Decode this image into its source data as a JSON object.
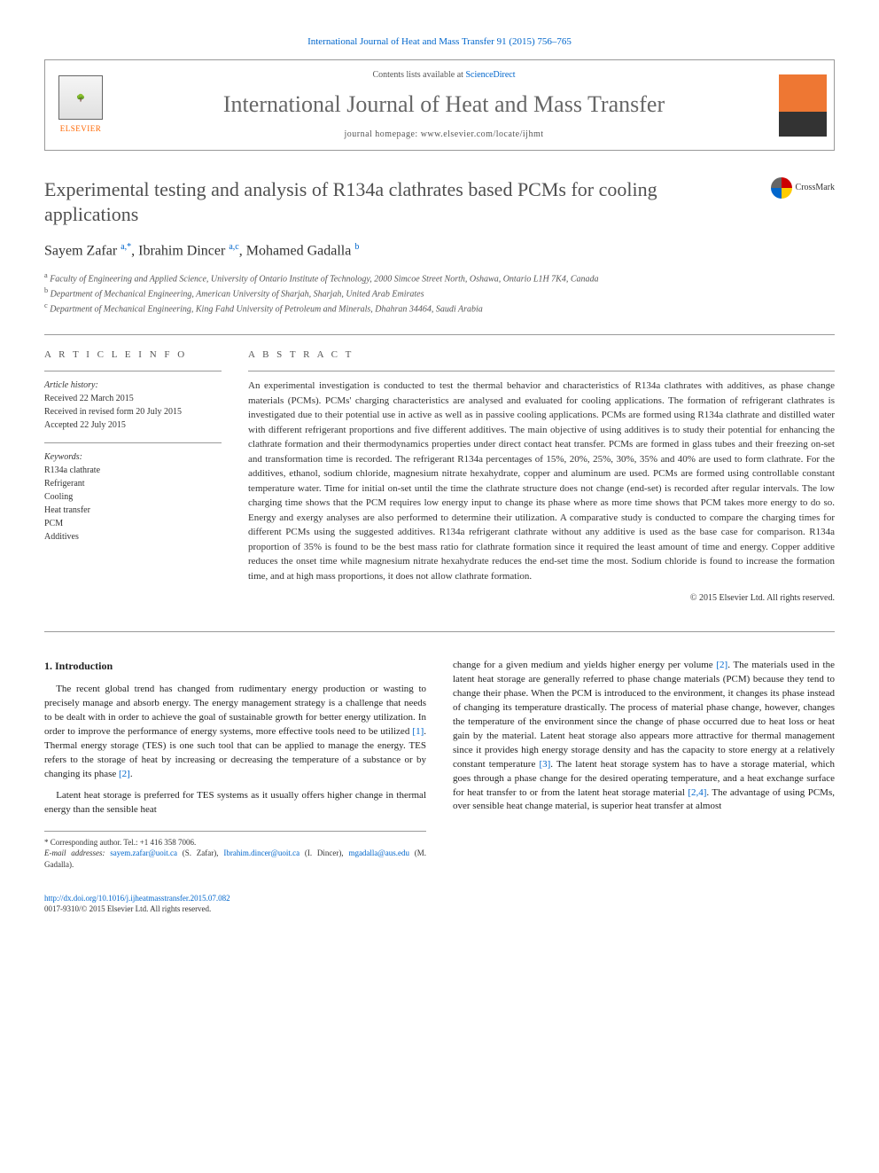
{
  "citation": "International Journal of Heat and Mass Transfer 91 (2015) 756–765",
  "header": {
    "contents_prefix": "Contents lists available at ",
    "contents_link": "ScienceDirect",
    "journal_name": "International Journal of Heat and Mass Transfer",
    "homepage_prefix": "journal homepage: ",
    "homepage_url": "www.elsevier.com/locate/ijhmt",
    "publisher": "ELSEVIER"
  },
  "title": "Experimental testing and analysis of R134a clathrates based PCMs for cooling applications",
  "crossmark": "CrossMark",
  "authors_html": "Sayem Zafar <sup>a,*</sup>, Ibrahim Dincer <sup>a,c</sup>, Mohamed Gadalla <sup>b</sup>",
  "affiliations": [
    "a Faculty of Engineering and Applied Science, University of Ontario Institute of Technology, 2000 Simcoe Street North, Oshawa, Ontario L1H 7K4, Canada",
    "b Department of Mechanical Engineering, American University of Sharjah, Sharjah, United Arab Emirates",
    "c Department of Mechanical Engineering, King Fahd University of Petroleum and Minerals, Dhahran 34464, Saudi Arabia"
  ],
  "article_info": {
    "heading": "A R T I C L E   I N F O",
    "history_label": "Article history:",
    "history": [
      "Received 22 March 2015",
      "Received in revised form 20 July 2015",
      "Accepted 22 July 2015"
    ],
    "keywords_label": "Keywords:",
    "keywords": [
      "R134a clathrate",
      "Refrigerant",
      "Cooling",
      "Heat transfer",
      "PCM",
      "Additives"
    ]
  },
  "abstract": {
    "heading": "A B S T R A C T",
    "text": "An experimental investigation is conducted to test the thermal behavior and characteristics of R134a clathrates with additives, as phase change materials (PCMs). PCMs' charging characteristics are analysed and evaluated for cooling applications. The formation of refrigerant clathrates is investigated due to their potential use in active as well as in passive cooling applications. PCMs are formed using R134a clathrate and distilled water with different refrigerant proportions and five different additives. The main objective of using additives is to study their potential for enhancing the clathrate formation and their thermodynamics properties under direct contact heat transfer. PCMs are formed in glass tubes and their freezing on-set and transformation time is recorded. The refrigerant R134a percentages of 15%, 20%, 25%, 30%, 35% and 40% are used to form clathrate. For the additives, ethanol, sodium chloride, magnesium nitrate hexahydrate, copper and aluminum are used. PCMs are formed using controllable constant temperature water. Time for initial on-set until the time the clathrate structure does not change (end-set) is recorded after regular intervals. The low charging time shows that the PCM requires low energy input to change its phase where as more time shows that PCM takes more energy to do so. Energy and exergy analyses are also performed to determine their utilization. A comparative study is conducted to compare the charging times for different PCMs using the suggested additives. R134a refrigerant clathrate without any additive is used as the base case for comparison. R134a proportion of 35% is found to be the best mass ratio for clathrate formation since it required the least amount of time and energy. Copper additive reduces the onset time while magnesium nitrate hexahydrate reduces the end-set time the most. Sodium chloride is found to increase the formation time, and at high mass proportions, it does not allow clathrate formation.",
    "copyright": "© 2015 Elsevier Ltd. All rights reserved."
  },
  "body": {
    "section_heading": "1. Introduction",
    "col1_p1": "The recent global trend has changed from rudimentary energy production or wasting to precisely manage and absorb energy. The energy management strategy is a challenge that needs to be dealt with in order to achieve the goal of sustainable growth for better energy utilization. In order to improve the performance of energy systems, more effective tools need to be utilized [1]. Thermal energy storage (TES) is one such tool that can be applied to manage the energy. TES refers to the storage of heat by increasing or decreasing the temperature of a substance or by changing its phase [2].",
    "col1_p2": "Latent heat storage is preferred for TES systems as it usually offers higher change in thermal energy than the sensible heat",
    "col2_p1": "change for a given medium and yields higher energy per volume [2]. The materials used in the latent heat storage are generally referred to phase change materials (PCM) because they tend to change their phase. When the PCM is introduced to the environment, it changes its phase instead of changing its temperature drastically. The process of material phase change, however, changes the temperature of the environment since the change of phase occurred due to heat loss or heat gain by the material. Latent heat storage also appears more attractive for thermal management since it provides high energy storage density and has the capacity to store energy at a relatively constant temperature [3]. The latent heat storage system has to have a storage material, which goes through a phase change for the desired operating temperature, and a heat exchange surface for heat transfer to or from the latent heat storage material [2,4]. The advantage of using PCMs, over sensible heat change material, is superior heat transfer at almost"
  },
  "footer": {
    "corresponding": "* Corresponding author. Tel.: +1 416 358 7006.",
    "emails_label": "E-mail addresses: ",
    "emails": "sayem.zafar@uoit.ca (S. Zafar), Ibrahim.dincer@uoit.ca (I. Dincer), mgadalla@aus.edu (M. Gadalla).",
    "doi": "http://dx.doi.org/10.1016/j.ijheatmasstransfer.2015.07.082",
    "issn": "0017-9310/© 2015 Elsevier Ltd. All rights reserved."
  },
  "colors": {
    "link": "#0066cc",
    "accent": "#ff6600",
    "text_gray": "#555555"
  }
}
